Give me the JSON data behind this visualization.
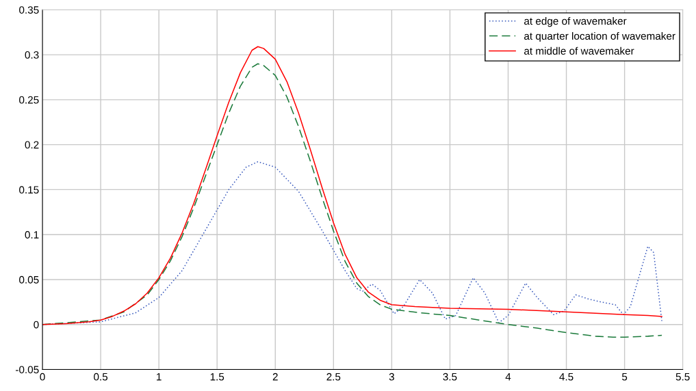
{
  "chart_data": {
    "type": "line",
    "xlim": [
      0,
      5.5
    ],
    "ylim": [
      -0.05,
      0.35
    ],
    "xticks": [
      0,
      0.5,
      1,
      1.5,
      2,
      2.5,
      3,
      3.5,
      4,
      4.5,
      5,
      5.5
    ],
    "yticks": [
      {
        "value": -0.05,
        "label": "-0.05"
      },
      0,
      0.05,
      0.1,
      0.15,
      0.2,
      0.25,
      0.3,
      0.35
    ],
    "grid": true,
    "legend": "top right",
    "marker": "none",
    "series": [
      {
        "name": "at edge of wavemaker",
        "color": "#3355bb",
        "line_style": "dotted",
        "x": [
          0,
          0.5,
          0.8,
          1.0,
          1.2,
          1.4,
          1.6,
          1.75,
          1.85,
          2.0,
          2.2,
          2.4,
          2.6,
          2.7,
          2.75,
          2.83,
          2.9,
          3.02,
          3.1,
          3.24,
          3.35,
          3.46,
          3.55,
          3.7,
          3.8,
          3.92,
          4.0,
          4.15,
          4.25,
          4.39,
          4.48,
          4.58,
          4.7,
          4.8,
          4.92,
          4.99,
          5.05,
          5.2,
          5.25,
          5.32
        ],
        "values": [
          0,
          0.003,
          0.013,
          0.03,
          0.06,
          0.105,
          0.15,
          0.175,
          0.181,
          0.175,
          0.148,
          0.105,
          0.06,
          0.04,
          0.037,
          0.045,
          0.038,
          0.012,
          0.02,
          0.05,
          0.035,
          0.006,
          0.01,
          0.052,
          0.035,
          0.002,
          0.01,
          0.046,
          0.03,
          0.011,
          0.015,
          0.033,
          0.028,
          0.025,
          0.022,
          0.011,
          0.02,
          0.087,
          0.08,
          0.004
        ]
      },
      {
        "name": "at quarter location of wavemaker",
        "color": "#1a7a3a",
        "line_style": "dashed",
        "x": [
          0,
          0.5,
          0.7,
          0.9,
          1.0,
          1.1,
          1.2,
          1.3,
          1.4,
          1.5,
          1.6,
          1.7,
          1.8,
          1.85,
          1.9,
          2.0,
          2.1,
          2.2,
          2.3,
          2.4,
          2.5,
          2.6,
          2.7,
          2.8,
          2.9,
          3.0,
          3.25,
          3.5,
          3.75,
          4.0,
          4.25,
          4.5,
          4.75,
          4.9,
          5.0,
          5.2,
          5.32
        ],
        "values": [
          0,
          0.005,
          0.014,
          0.033,
          0.05,
          0.071,
          0.098,
          0.13,
          0.165,
          0.2,
          0.235,
          0.265,
          0.286,
          0.29,
          0.288,
          0.277,
          0.253,
          0.22,
          0.182,
          0.142,
          0.104,
          0.07,
          0.046,
          0.031,
          0.022,
          0.017,
          0.013,
          0.01,
          0.005,
          0.0,
          -0.004,
          -0.009,
          -0.013,
          -0.014,
          -0.014,
          -0.013,
          -0.012
        ]
      },
      {
        "name": "at middle of wavemaker",
        "color": "#ff0000",
        "line_style": "solid",
        "x": [
          0,
          0.2,
          0.4,
          0.5,
          0.6,
          0.7,
          0.8,
          0.9,
          1.0,
          1.1,
          1.2,
          1.3,
          1.4,
          1.5,
          1.6,
          1.7,
          1.8,
          1.85,
          1.9,
          2.0,
          2.1,
          2.2,
          2.3,
          2.4,
          2.5,
          2.6,
          2.7,
          2.8,
          2.9,
          3.0,
          3.2,
          3.5,
          4.0,
          4.5,
          5.0,
          5.2,
          5.32
        ],
        "values": [
          0,
          0.001,
          0.003,
          0.005,
          0.009,
          0.015,
          0.023,
          0.035,
          0.052,
          0.074,
          0.102,
          0.135,
          0.172,
          0.21,
          0.247,
          0.28,
          0.305,
          0.309,
          0.307,
          0.295,
          0.27,
          0.235,
          0.195,
          0.153,
          0.113,
          0.078,
          0.052,
          0.036,
          0.027,
          0.022,
          0.02,
          0.018,
          0.017,
          0.014,
          0.011,
          0.01,
          0.009
        ]
      }
    ]
  }
}
